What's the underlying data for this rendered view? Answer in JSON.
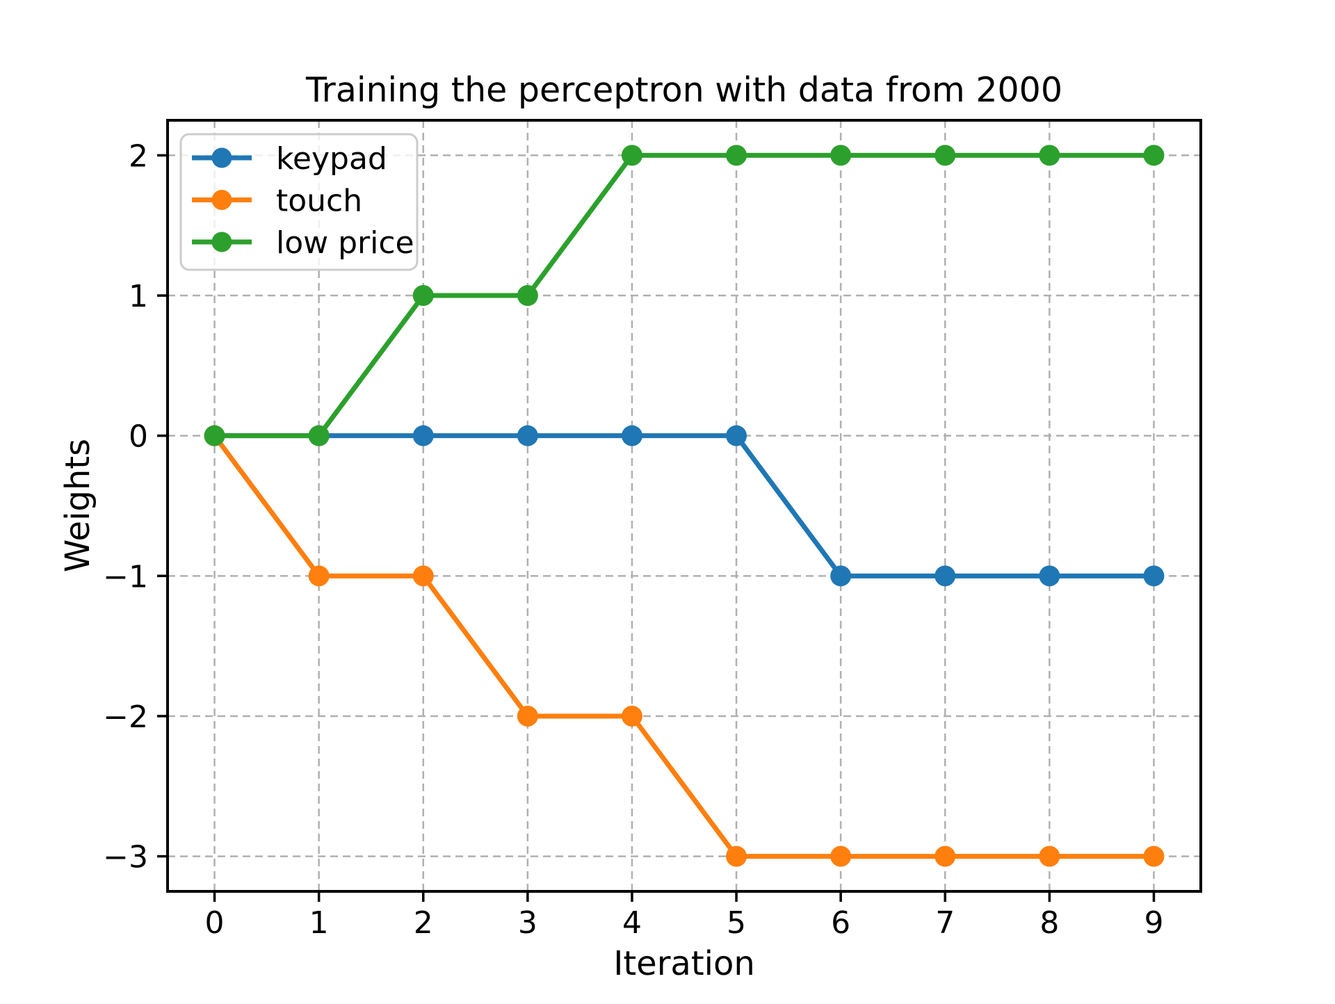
{
  "figure": {
    "title": "Training the perceptron with data from 2000"
  },
  "chart_data": {
    "type": "line",
    "title": "Training the perceptron with data from 2000",
    "xlabel": "Iteration",
    "ylabel": "Weights",
    "x": [
      0,
      1,
      2,
      3,
      4,
      5,
      6,
      7,
      8,
      9
    ],
    "series": [
      {
        "name": "keypad",
        "color": "#1f77b4",
        "values": [
          0,
          0,
          0,
          0,
          0,
          0,
          -1,
          -1,
          -1,
          -1
        ]
      },
      {
        "name": "touch",
        "color": "#ff7f0e",
        "values": [
          0,
          -1,
          -1,
          -2,
          -2,
          -3,
          -3,
          -3,
          -3,
          -3
        ]
      },
      {
        "name": "low price",
        "color": "#2ca02c",
        "values": [
          0,
          0,
          1,
          1,
          2,
          2,
          2,
          2,
          2,
          2
        ]
      }
    ],
    "xlim": [
      -0.45,
      9.45
    ],
    "ylim": [
      -3.25,
      2.25
    ],
    "x_ticks": [
      0,
      1,
      2,
      3,
      4,
      5,
      6,
      7,
      8,
      9
    ],
    "y_ticks": [
      2,
      1,
      0,
      -1,
      -2,
      -3
    ],
    "x_tick_labels": [
      "0",
      "1",
      "2",
      "3",
      "4",
      "5",
      "6",
      "7",
      "8",
      "9"
    ],
    "y_tick_labels": [
      "2",
      "1",
      "0",
      "−1",
      "−2",
      "−3"
    ],
    "grid": true,
    "grid_style": "dashed",
    "legend": {
      "position": "upper left",
      "entries": [
        "keypad",
        "touch",
        "low price"
      ]
    },
    "colors": {
      "background": "#ffffff",
      "text": "#000000",
      "spine": "#000000",
      "grid": "#b0b0b0",
      "legend_border": "#cccccc",
      "legend_background": "#ffffff"
    }
  }
}
